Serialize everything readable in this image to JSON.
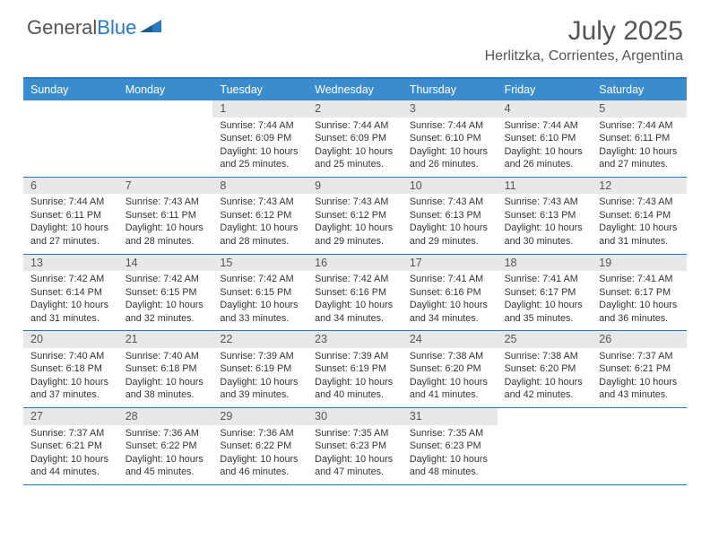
{
  "logo": {
    "word1": "General",
    "word2": "Blue"
  },
  "title": "July 2025",
  "location": "Herlitzka, Corrientes, Argentina",
  "colors": {
    "header_bg": "#3b8ccc",
    "header_text": "#ffffff",
    "rule": "#2a78c2",
    "daynum_bg": "#e8e8e8",
    "body_text": "#333333",
    "title_text": "#555555"
  },
  "day_headers": [
    "Sunday",
    "Monday",
    "Tuesday",
    "Wednesday",
    "Thursday",
    "Friday",
    "Saturday"
  ],
  "weeks": [
    [
      null,
      null,
      {
        "n": "1",
        "sr": "7:44 AM",
        "ss": "6:09 PM",
        "dl": "10 hours and 25 minutes."
      },
      {
        "n": "2",
        "sr": "7:44 AM",
        "ss": "6:09 PM",
        "dl": "10 hours and 25 minutes."
      },
      {
        "n": "3",
        "sr": "7:44 AM",
        "ss": "6:10 PM",
        "dl": "10 hours and 26 minutes."
      },
      {
        "n": "4",
        "sr": "7:44 AM",
        "ss": "6:10 PM",
        "dl": "10 hours and 26 minutes."
      },
      {
        "n": "5",
        "sr": "7:44 AM",
        "ss": "6:11 PM",
        "dl": "10 hours and 27 minutes."
      }
    ],
    [
      {
        "n": "6",
        "sr": "7:44 AM",
        "ss": "6:11 PM",
        "dl": "10 hours and 27 minutes."
      },
      {
        "n": "7",
        "sr": "7:43 AM",
        "ss": "6:11 PM",
        "dl": "10 hours and 28 minutes."
      },
      {
        "n": "8",
        "sr": "7:43 AM",
        "ss": "6:12 PM",
        "dl": "10 hours and 28 minutes."
      },
      {
        "n": "9",
        "sr": "7:43 AM",
        "ss": "6:12 PM",
        "dl": "10 hours and 29 minutes."
      },
      {
        "n": "10",
        "sr": "7:43 AM",
        "ss": "6:13 PM",
        "dl": "10 hours and 29 minutes."
      },
      {
        "n": "11",
        "sr": "7:43 AM",
        "ss": "6:13 PM",
        "dl": "10 hours and 30 minutes."
      },
      {
        "n": "12",
        "sr": "7:43 AM",
        "ss": "6:14 PM",
        "dl": "10 hours and 31 minutes."
      }
    ],
    [
      {
        "n": "13",
        "sr": "7:42 AM",
        "ss": "6:14 PM",
        "dl": "10 hours and 31 minutes."
      },
      {
        "n": "14",
        "sr": "7:42 AM",
        "ss": "6:15 PM",
        "dl": "10 hours and 32 minutes."
      },
      {
        "n": "15",
        "sr": "7:42 AM",
        "ss": "6:15 PM",
        "dl": "10 hours and 33 minutes."
      },
      {
        "n": "16",
        "sr": "7:42 AM",
        "ss": "6:16 PM",
        "dl": "10 hours and 34 minutes."
      },
      {
        "n": "17",
        "sr": "7:41 AM",
        "ss": "6:16 PM",
        "dl": "10 hours and 34 minutes."
      },
      {
        "n": "18",
        "sr": "7:41 AM",
        "ss": "6:17 PM",
        "dl": "10 hours and 35 minutes."
      },
      {
        "n": "19",
        "sr": "7:41 AM",
        "ss": "6:17 PM",
        "dl": "10 hours and 36 minutes."
      }
    ],
    [
      {
        "n": "20",
        "sr": "7:40 AM",
        "ss": "6:18 PM",
        "dl": "10 hours and 37 minutes."
      },
      {
        "n": "21",
        "sr": "7:40 AM",
        "ss": "6:18 PM",
        "dl": "10 hours and 38 minutes."
      },
      {
        "n": "22",
        "sr": "7:39 AM",
        "ss": "6:19 PM",
        "dl": "10 hours and 39 minutes."
      },
      {
        "n": "23",
        "sr": "7:39 AM",
        "ss": "6:19 PM",
        "dl": "10 hours and 40 minutes."
      },
      {
        "n": "24",
        "sr": "7:38 AM",
        "ss": "6:20 PM",
        "dl": "10 hours and 41 minutes."
      },
      {
        "n": "25",
        "sr": "7:38 AM",
        "ss": "6:20 PM",
        "dl": "10 hours and 42 minutes."
      },
      {
        "n": "26",
        "sr": "7:37 AM",
        "ss": "6:21 PM",
        "dl": "10 hours and 43 minutes."
      }
    ],
    [
      {
        "n": "27",
        "sr": "7:37 AM",
        "ss": "6:21 PM",
        "dl": "10 hours and 44 minutes."
      },
      {
        "n": "28",
        "sr": "7:36 AM",
        "ss": "6:22 PM",
        "dl": "10 hours and 45 minutes."
      },
      {
        "n": "29",
        "sr": "7:36 AM",
        "ss": "6:22 PM",
        "dl": "10 hours and 46 minutes."
      },
      {
        "n": "30",
        "sr": "7:35 AM",
        "ss": "6:23 PM",
        "dl": "10 hours and 47 minutes."
      },
      {
        "n": "31",
        "sr": "7:35 AM",
        "ss": "6:23 PM",
        "dl": "10 hours and 48 minutes."
      },
      null,
      null
    ]
  ],
  "labels": {
    "sunrise": "Sunrise: ",
    "sunset": "Sunset: ",
    "daylight": "Daylight: "
  }
}
